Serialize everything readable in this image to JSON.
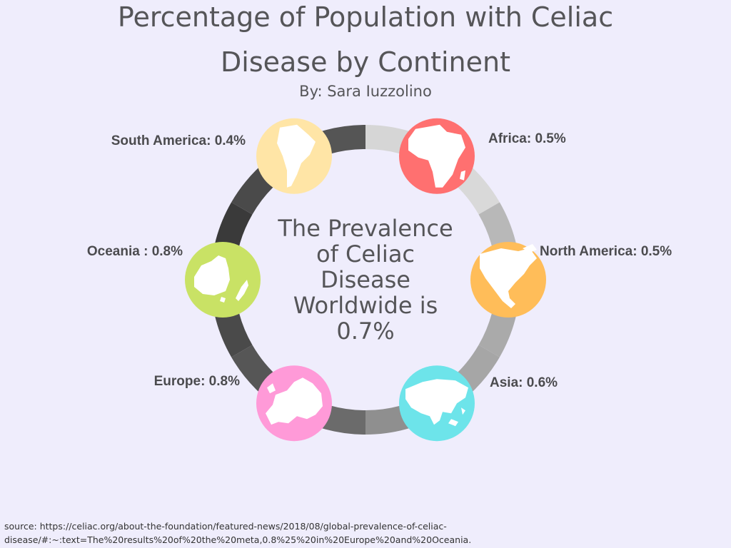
{
  "header": {
    "title_line1": "Percentage of Population with Celiac",
    "title_line2": "Disease by Continent",
    "byline": "By: Sara Iuzzolino"
  },
  "center": {
    "lines": [
      "The Prevalence",
      "of Celiac",
      "Disease",
      "Worldwide is",
      "0.7%"
    ]
  },
  "source": {
    "line1": "source: https://celiac.org/about-the-foundation/featured-news/2018/08/global-prevalence-of-celiac-",
    "line2": "disease/#:~:text=The%20results%20of%20the%20meta,0.8%25%20in%20Europe%20and%20Oceania."
  },
  "chart_data": {
    "type": "infographic",
    "title": "Percentage of Population with Celiac Disease by Continent",
    "subtitle": "By: Sara Iuzzolino",
    "center_value": 0.7,
    "unit": "%",
    "categories": [
      "Africa",
      "North America",
      "Asia",
      "Europe",
      "Oceania",
      "South America"
    ],
    "values": [
      0.5,
      0.5,
      0.6,
      0.8,
      0.8,
      0.4
    ],
    "labels": [
      "Africa: 0.5%",
      "North America: 0.5%",
      "Asia: 0.6%",
      "Europe: 0.8%",
      "Oceania : 0.8%",
      "South America: 0.4%"
    ],
    "colors": [
      "#ff7070",
      "#ffbd59",
      "#6de4ea",
      "#ff9ad8",
      "#c9e265",
      "#ffe5a6"
    ],
    "icons": [
      "africa-map-icon",
      "north-america-map-icon",
      "asia-map-icon",
      "europe-map-icon",
      "oceania-map-icon",
      "south-america-map-icon"
    ],
    "ring_segment_colors": [
      "#d6d6d6",
      "#d9d9d9",
      "#b8b8b8",
      "#aaaaaa",
      "#a6a6a6",
      "#8f8f8f",
      "#6b6b6b",
      "#565656",
      "#4a4a4a",
      "#3a3a3a",
      "#4a4a4a",
      "#555555"
    ]
  }
}
